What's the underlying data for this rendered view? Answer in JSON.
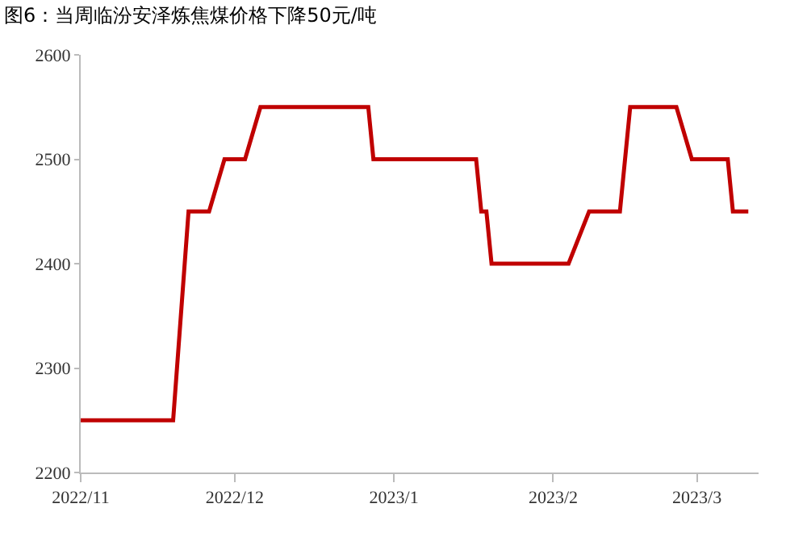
{
  "chart_data": {
    "type": "line",
    "title": "图6：当周临汾安泽炼焦煤价格下降50元/吨",
    "x": [
      "2022-11-01",
      "2022-11-19",
      "2022-11-22",
      "2022-11-26",
      "2022-11-29",
      "2022-12-03",
      "2022-12-06",
      "2022-12-27",
      "2022-12-28",
      "2023-01-17",
      "2023-01-18",
      "2023-01-19",
      "2023-01-20",
      "2023-02-04",
      "2023-02-08",
      "2023-02-14",
      "2023-02-16",
      "2023-02-25",
      "2023-02-28",
      "2023-03-07",
      "2023-03-08",
      "2023-03-11"
    ],
    "series": [
      {
        "color": "#c00000",
        "values": [
          2250,
          2250,
          2450,
          2450,
          2500,
          2500,
          2550,
          2550,
          2500,
          2500,
          2450,
          2450,
          2400,
          2400,
          2450,
          2450,
          2550,
          2550,
          2500,
          2500,
          2450,
          2450
        ]
      }
    ],
    "xlim": [
      "2022-11-01",
      "2023-03-13"
    ],
    "xticks": [
      {
        "value": "2022-11-01",
        "label": "2022/11"
      },
      {
        "value": "2022-12-01",
        "label": "2022/12"
      },
      {
        "value": "2023-01-01",
        "label": "2023/1"
      },
      {
        "value": "2023-02-01",
        "label": "2023/2"
      },
      {
        "value": "2023-03-01",
        "label": "2023/3"
      }
    ],
    "ylim": [
      2200,
      2600
    ],
    "yticks": [
      2200,
      2300,
      2400,
      2500,
      2600
    ],
    "marker": "none",
    "line_style": "solid"
  }
}
